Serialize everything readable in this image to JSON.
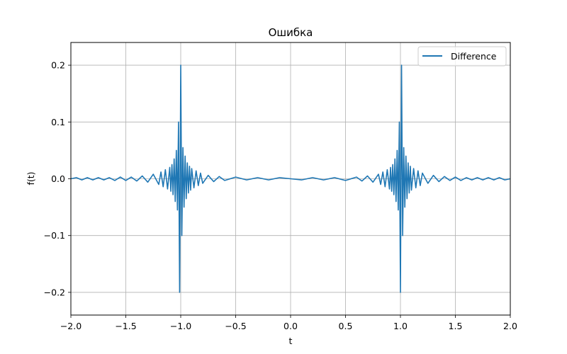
{
  "chart_data": {
    "type": "line",
    "title": "Ошибка",
    "xlabel": "t",
    "ylabel": "f(t)",
    "xlim": [
      -2.0,
      2.0
    ],
    "ylim": [
      -0.24,
      0.24
    ],
    "grid": true,
    "legend": {
      "position": "top-right",
      "entries": [
        "Difference"
      ]
    },
    "x_ticks": [
      -2.0,
      -1.5,
      -1.0,
      -0.5,
      0.0,
      0.5,
      1.0,
      1.5,
      2.0
    ],
    "x_tick_labels": [
      "−2.0",
      "−1.5",
      "−1.0",
      "−0.5",
      "0.0",
      "0.5",
      "1.0",
      "1.5",
      "2.0"
    ],
    "y_ticks": [
      -0.2,
      -0.1,
      0.0,
      0.1,
      0.2
    ],
    "y_tick_labels": [
      "−0.2",
      "−0.1",
      "0.0",
      "0.1",
      "0.2"
    ],
    "series": [
      {
        "name": "Difference",
        "color": "#1f77b4",
        "x": [
          -2.0,
          -1.95,
          -1.9,
          -1.85,
          -1.8,
          -1.75,
          -1.7,
          -1.65,
          -1.6,
          -1.55,
          -1.5,
          -1.45,
          -1.4,
          -1.35,
          -1.3,
          -1.25,
          -1.2,
          -1.18,
          -1.16,
          -1.14,
          -1.12,
          -1.1,
          -1.09,
          -1.08,
          -1.07,
          -1.06,
          -1.05,
          -1.04,
          -1.03,
          -1.02,
          -1.01,
          -1.0,
          -0.99,
          -0.98,
          -0.97,
          -0.96,
          -0.95,
          -0.94,
          -0.93,
          -0.92,
          -0.91,
          -0.9,
          -0.88,
          -0.86,
          -0.84,
          -0.82,
          -0.8,
          -0.75,
          -0.7,
          -0.65,
          -0.6,
          -0.5,
          -0.4,
          -0.3,
          -0.2,
          -0.1,
          0.0,
          0.1,
          0.2,
          0.3,
          0.4,
          0.5,
          0.6,
          0.65,
          0.7,
          0.75,
          0.8,
          0.82,
          0.84,
          0.86,
          0.88,
          0.9,
          0.91,
          0.92,
          0.93,
          0.94,
          0.95,
          0.96,
          0.97,
          0.98,
          0.99,
          1.0,
          1.01,
          1.02,
          1.03,
          1.04,
          1.05,
          1.06,
          1.07,
          1.08,
          1.09,
          1.1,
          1.12,
          1.14,
          1.16,
          1.18,
          1.2,
          1.25,
          1.3,
          1.35,
          1.4,
          1.45,
          1.5,
          1.55,
          1.6,
          1.65,
          1.7,
          1.75,
          1.8,
          1.85,
          1.9,
          1.95,
          2.0
        ],
        "y": [
          0.0,
          0.002,
          -0.002,
          0.002,
          -0.002,
          0.002,
          -0.002,
          0.002,
          -0.003,
          0.003,
          -0.003,
          0.003,
          -0.004,
          0.005,
          -0.006,
          0.008,
          -0.01,
          0.012,
          -0.014,
          0.016,
          -0.018,
          0.02,
          -0.022,
          0.025,
          -0.028,
          0.035,
          -0.04,
          0.05,
          -0.055,
          0.1,
          -0.2,
          0.2,
          -0.1,
          0.055,
          -0.05,
          0.04,
          -0.035,
          0.028,
          -0.025,
          0.022,
          -0.02,
          0.018,
          -0.016,
          0.014,
          -0.012,
          0.01,
          -0.008,
          0.006,
          -0.005,
          0.004,
          -0.003,
          0.003,
          -0.002,
          0.002,
          -0.002,
          0.002,
          0.0,
          -0.002,
          0.002,
          -0.002,
          0.002,
          -0.003,
          0.003,
          -0.004,
          0.005,
          -0.006,
          0.008,
          -0.01,
          0.012,
          -0.014,
          0.016,
          -0.018,
          0.02,
          -0.022,
          0.025,
          -0.028,
          0.035,
          -0.04,
          0.05,
          -0.055,
          0.1,
          -0.2,
          0.2,
          -0.1,
          0.055,
          -0.05,
          0.04,
          -0.035,
          0.028,
          -0.025,
          0.022,
          -0.02,
          0.018,
          -0.016,
          0.014,
          -0.012,
          0.01,
          -0.008,
          0.006,
          -0.005,
          0.004,
          -0.003,
          0.003,
          -0.003,
          0.002,
          -0.002,
          0.002,
          -0.002,
          0.002,
          -0.002,
          0.002,
          -0.002,
          0.0
        ]
      }
    ]
  }
}
